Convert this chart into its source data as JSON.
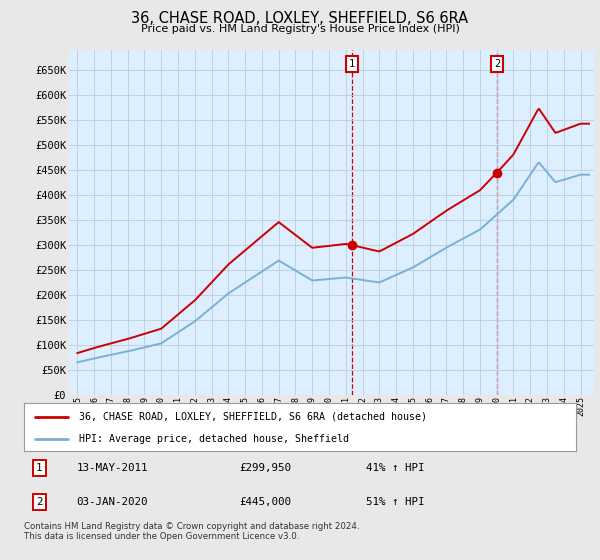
{
  "title": "36, CHASE ROAD, LOXLEY, SHEFFIELD, S6 6RA",
  "subtitle": "Price paid vs. HM Land Registry's House Price Index (HPI)",
  "ytick_values": [
    0,
    50000,
    100000,
    150000,
    200000,
    250000,
    300000,
    350000,
    400000,
    450000,
    500000,
    550000,
    600000,
    650000
  ],
  "ylim": [
    0,
    690000
  ],
  "xlim_start": 1994.5,
  "xlim_end": 2025.8,
  "red_line_color": "#cc0000",
  "blue_line_color": "#7ab0d4",
  "grid_color": "#bbccdd",
  "plot_bg_color": "#ddeeff",
  "fig_bg_color": "#e8e8e8",
  "sale1_x": 2011.36,
  "sale1_y": 299950,
  "sale1_label": "1",
  "sale2_x": 2020.01,
  "sale2_y": 445000,
  "sale2_label": "2",
  "legend_line1": "36, CHASE ROAD, LOXLEY, SHEFFIELD, S6 6RA (detached house)",
  "legend_line2": "HPI: Average price, detached house, Sheffield",
  "annotation1_date": "13-MAY-2011",
  "annotation1_price": "£299,950",
  "annotation1_hpi": "41% ↑ HPI",
  "annotation2_date": "03-JAN-2020",
  "annotation2_price": "£445,000",
  "annotation2_hpi": "51% ↑ HPI",
  "footer": "Contains HM Land Registry data © Crown copyright and database right 2024.\nThis data is licensed under the Open Government Licence v3.0."
}
